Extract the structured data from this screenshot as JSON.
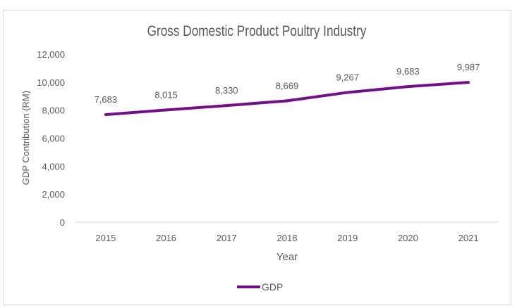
{
  "chart_data": {
    "type": "line",
    "title": "Gross Domestic Product Poultry Industry",
    "xlabel": "Year",
    "ylabel": "GDP Contribution (RM)",
    "categories": [
      "2015",
      "2016",
      "2017",
      "2018",
      "2019",
      "2020",
      "2021"
    ],
    "series": [
      {
        "name": "GDP",
        "values": [
          7683,
          8015,
          8330,
          8669,
          9267,
          9683,
          9987
        ],
        "color": "#720e8a"
      }
    ],
    "data_labels": [
      "7,683",
      "8,015",
      "8,330",
      "8,669",
      "9,267",
      "9,683",
      "9,987"
    ],
    "ylim": [
      0,
      12000
    ],
    "yticks": [
      0,
      2000,
      4000,
      6000,
      8000,
      10000,
      12000
    ],
    "ytick_labels": [
      "0",
      "2,000",
      "4,000",
      "6,000",
      "8,000",
      "10,000",
      "12,000"
    ],
    "grid": false,
    "legend_position": "bottom"
  }
}
